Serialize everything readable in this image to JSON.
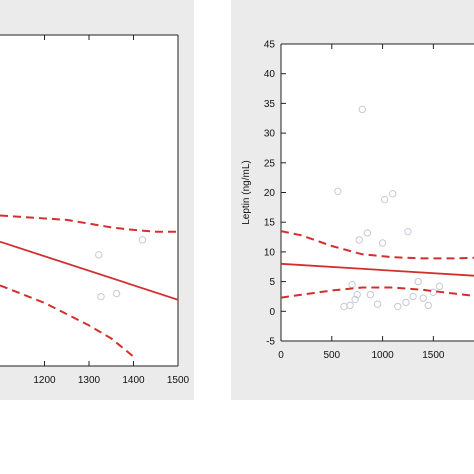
{
  "chart_data": [
    {
      "type": "scatter",
      "xlim": [
        1100,
        1500
      ],
      "ylim": [
        null,
        null
      ],
      "x_ticks": [
        1200,
        1300,
        1400,
        1500
      ],
      "y_ticks": [],
      "xlabel": "",
      "ylabel": "",
      "grid": false,
      "points": [
        {
          "x": 1322,
          "y": 9.8
        },
        {
          "x": 1327,
          "y": 3.1
        },
        {
          "x": 1362,
          "y": 3.6
        },
        {
          "x": 1420,
          "y": 12.2
        }
      ],
      "fit_line": {
        "x": [
          1100,
          1500
        ],
        "y": [
          11.9,
          2.6
        ]
      },
      "ci_upper": {
        "x": [
          1100,
          1250,
          1350,
          1400,
          1450,
          1500
        ],
        "y": [
          16.1,
          15.4,
          14.2,
          13.8,
          13.5,
          13.5
        ]
      },
      "ci_lower": {
        "x": [
          1100,
          1200,
          1300,
          1350,
          1400
        ],
        "y": [
          4.9,
          2.1,
          -1.5,
          -3.6,
          -6.5
        ]
      },
      "colors": {
        "line": "#d32f2f",
        "point": "#c8c8d8"
      }
    },
    {
      "type": "scatter",
      "xlim": [
        0,
        1900
      ],
      "ylim": [
        -5,
        45
      ],
      "x_ticks": [
        0,
        500,
        1000,
        1500
      ],
      "y_ticks": [
        -5,
        0,
        5,
        10,
        15,
        20,
        25,
        30,
        35,
        40,
        45
      ],
      "xlabel": "",
      "ylabel": "Leptin (ng/mL)",
      "grid": false,
      "points": [
        {
          "x": 560,
          "y": 20.2
        },
        {
          "x": 620,
          "y": 0.8
        },
        {
          "x": 680,
          "y": 1.0
        },
        {
          "x": 700,
          "y": 4.5
        },
        {
          "x": 730,
          "y": 2.0
        },
        {
          "x": 750,
          "y": 2.8
        },
        {
          "x": 770,
          "y": 12.0
        },
        {
          "x": 800,
          "y": 34.0
        },
        {
          "x": 850,
          "y": 13.2
        },
        {
          "x": 880,
          "y": 2.8
        },
        {
          "x": 950,
          "y": 1.2
        },
        {
          "x": 1000,
          "y": 11.5
        },
        {
          "x": 1020,
          "y": 18.8
        },
        {
          "x": 1100,
          "y": 19.8
        },
        {
          "x": 1150,
          "y": 0.8
        },
        {
          "x": 1230,
          "y": 1.5
        },
        {
          "x": 1250,
          "y": 13.4
        },
        {
          "x": 1300,
          "y": 2.5
        },
        {
          "x": 1350,
          "y": 5.0
        },
        {
          "x": 1400,
          "y": 2.2
        },
        {
          "x": 1450,
          "y": 1.0
        },
        {
          "x": 1500,
          "y": 3.2
        },
        {
          "x": 1560,
          "y": 4.2
        }
      ],
      "fit_line": {
        "x": [
          0,
          1900
        ],
        "y": [
          8.0,
          6.0
        ]
      },
      "ci_upper": {
        "x": [
          0,
          200,
          500,
          800,
          1100,
          1400,
          1700,
          1900
        ],
        "y": [
          13.5,
          12.8,
          11.0,
          9.6,
          9.1,
          8.9,
          8.9,
          9.0
        ]
      },
      "ci_lower": {
        "x": [
          0,
          200,
          500,
          800,
          1100,
          1400,
          1700,
          1900
        ],
        "y": [
          2.3,
          2.8,
          3.5,
          4.0,
          4.0,
          3.6,
          3.0,
          2.6
        ]
      },
      "colors": {
        "line": "#d32f2f",
        "point": "#c8c8d8"
      }
    }
  ]
}
